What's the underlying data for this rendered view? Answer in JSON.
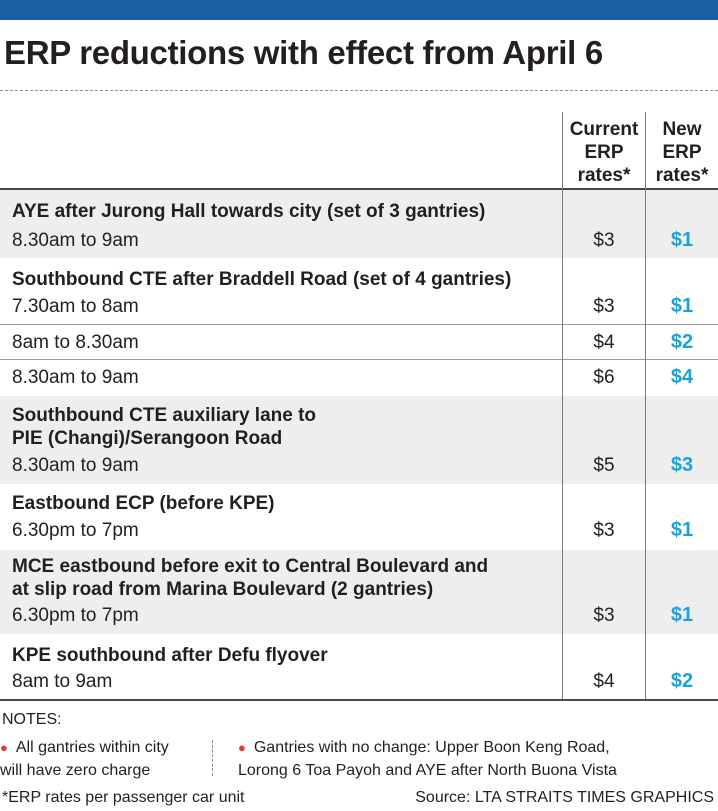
{
  "title": "ERP reductions with effect from April 6",
  "table": {
    "header_current": "Current\nERP\nrates*",
    "header_new": "New\nERP\nrates*",
    "rows": [
      {
        "heading": "AYE after Jurong Hall towards city (set of 3 gantries)",
        "time": "8.30am to 9am",
        "current": "$3",
        "new": "$1"
      },
      {
        "heading": "Southbound CTE after Braddell Road (set of 4 gantries)",
        "time": "7.30am to 8am",
        "current": "$3",
        "new": "$1"
      },
      {
        "time": "8am to 8.30am",
        "current": "$4",
        "new": "$2"
      },
      {
        "time": "8.30am to 9am",
        "current": "$6",
        "new": "$4"
      },
      {
        "heading_line1": "Southbound CTE auxiliary lane to",
        "heading_line2": "PIE (Changi)/Serangoon Road",
        "time": "8.30am to 9am",
        "current": "$5",
        "new": "$3"
      },
      {
        "heading": "Eastbound ECP (before KPE)",
        "time": "6.30pm to 7pm",
        "current": "$3",
        "new": "$1"
      },
      {
        "heading_line1": "MCE eastbound before exit to Central Boulevard and",
        "heading_line2": "at slip road from Marina Boulevard (2 gantries)",
        "time": "6.30pm to 7pm",
        "current": "$3",
        "new": "$1"
      },
      {
        "heading": "KPE southbound after Defu flyover",
        "time": "8am to 9am",
        "current": "$4",
        "new": "$2"
      }
    ]
  },
  "notes": {
    "title": "NOTES:",
    "note1_line1": "All gantries within city",
    "note1_line2": "will have zero charge",
    "note2_line1": "Gantries with no change: Upper Boon Keng Road,",
    "note2_line2": "Lorong 6 Toa Payoh and AYE after North Buona Vista"
  },
  "footnote": "*ERP rates per passenger car unit",
  "source": "Source: LTA   STRAITS TIMES GRAPHICS",
  "colors": {
    "top_bar": "#1a5fa3",
    "new_rate": "#1aa3d8",
    "bullet": "#e8392b",
    "row_shade": "#eeeeee"
  }
}
